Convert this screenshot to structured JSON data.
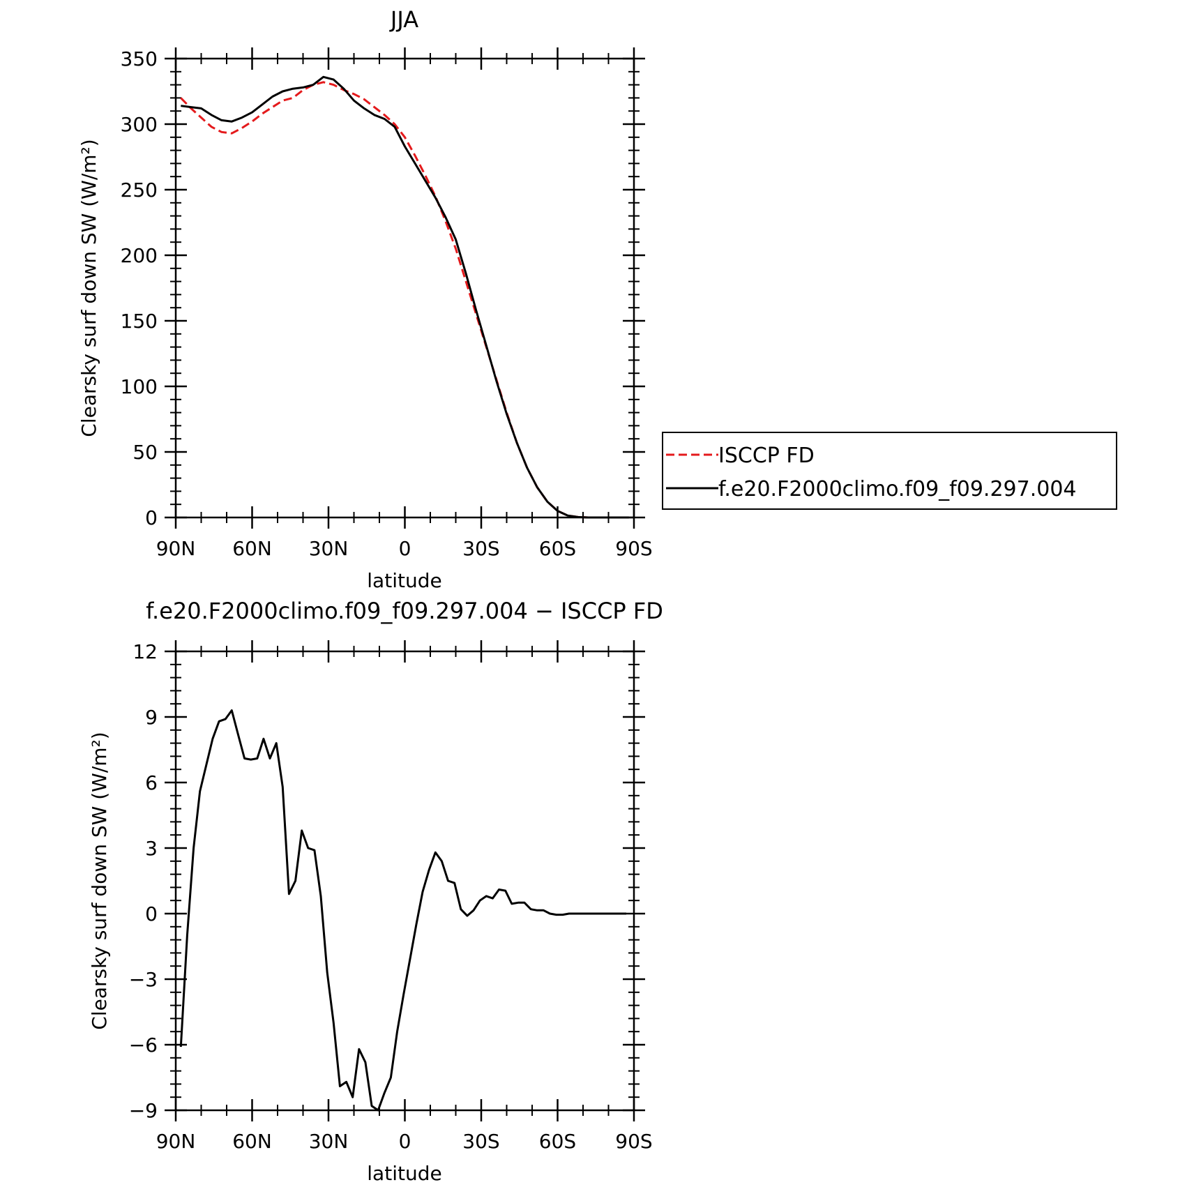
{
  "chart_data": [
    {
      "type": "line",
      "title": "JJA",
      "xlabel": "latitude",
      "ylabel": "Clearsky surf down SW (W/m²)",
      "xlim": [
        90,
        -90
      ],
      "ylim": [
        0,
        350
      ],
      "xticks": [
        90,
        60,
        30,
        0,
        -30,
        -60,
        -90
      ],
      "xtick_labels": [
        "90N",
        "60N",
        "30N",
        "0",
        "30S",
        "60S",
        "90S"
      ],
      "yticks": [
        0,
        50,
        100,
        150,
        200,
        250,
        300,
        350
      ],
      "ytick_labels": [
        "0",
        "50",
        "100",
        "150",
        "200",
        "250",
        "300",
        "350"
      ],
      "legend": "right",
      "series": [
        {
          "name": "ISCCP FD",
          "color": "#e41a1c",
          "style": "dashed",
          "x": [
            88,
            84,
            80,
            76,
            72,
            68,
            64,
            60,
            56,
            52,
            48,
            44,
            40,
            36,
            32,
            28,
            24,
            20,
            16,
            12,
            8,
            4,
            0,
            -4,
            -8,
            -12,
            -16,
            -20,
            -24,
            -28,
            -32,
            -36,
            -40,
            -44,
            -48,
            -52,
            -56,
            -60,
            -64,
            -68,
            -72,
            -76,
            -80,
            -84,
            -88
          ],
          "values": [
            320,
            312,
            305,
            298,
            294,
            293,
            297,
            302,
            308,
            313,
            318,
            320,
            326,
            330,
            332,
            330,
            326,
            323,
            319,
            313,
            307,
            300,
            290,
            276,
            261,
            245,
            226,
            205,
            180,
            155,
            130,
            105,
            80,
            57,
            38,
            23,
            12,
            5,
            1.5,
            0.3,
            0,
            0,
            0,
            0,
            0
          ]
        },
        {
          "name": "f.e20.F2000climo.f09_f09.297.004",
          "color": "#000000",
          "style": "solid",
          "x": [
            88,
            84,
            80,
            76,
            72,
            68,
            64,
            60,
            56,
            52,
            48,
            44,
            40,
            36,
            32,
            28,
            24,
            20,
            16,
            12,
            8,
            4,
            0,
            -4,
            -8,
            -12,
            -16,
            -20,
            -24,
            -28,
            -32,
            -36,
            -40,
            -44,
            -48,
            -52,
            -56,
            -60,
            -64,
            -68,
            -72,
            -76,
            -80,
            -84,
            -88
          ],
          "values": [
            314,
            313,
            312,
            307,
            303,
            302,
            305,
            309,
            315,
            321,
            325,
            327,
            328,
            330,
            336,
            334,
            327,
            318,
            312,
            307,
            304,
            298,
            283,
            270,
            257,
            244,
            229,
            212,
            186,
            158,
            131,
            104,
            79,
            57,
            38,
            23,
            12,
            5,
            1.5,
            0.3,
            0,
            0,
            0,
            0,
            0
          ]
        }
      ]
    },
    {
      "type": "line",
      "title": "f.e20.F2000climo.f09_f09.297.004 − ISCCP FD",
      "xlabel": "latitude",
      "ylabel": "Clearsky surf down SW (W/m²)",
      "xlim": [
        90,
        -90
      ],
      "ylim": [
        -9,
        12
      ],
      "xticks": [
        90,
        60,
        30,
        0,
        -30,
        -60,
        -90
      ],
      "xtick_labels": [
        "90N",
        "60N",
        "30N",
        "0",
        "30S",
        "60S",
        "90S"
      ],
      "yticks": [
        -9,
        -6,
        -3,
        0,
        3,
        6,
        9,
        12
      ],
      "ytick_labels": [
        "−9",
        "−6",
        "−3",
        "0",
        "3",
        "6",
        "9",
        "12"
      ],
      "series": [
        {
          "color": "#000000",
          "style": "solid",
          "x": [
            88,
            85.5,
            83,
            80.5,
            78,
            75.5,
            73,
            70.5,
            68,
            65.5,
            63,
            60.5,
            58,
            55.5,
            53,
            50.5,
            48,
            45.5,
            43,
            40.5,
            38,
            35.5,
            33,
            30.5,
            28,
            25.5,
            23,
            20.5,
            18,
            15.5,
            13,
            10.5,
            8,
            5.5,
            3,
            0.5,
            -2,
            -4.5,
            -7,
            -9.5,
            -12,
            -14.5,
            -17,
            -19.5,
            -22,
            -24.5,
            -27,
            -29.5,
            -32,
            -34.5,
            -37,
            -39.5,
            -42,
            -44.5,
            -47,
            -49.5,
            -52,
            -54.5,
            -57,
            -59.5,
            -62,
            -64.5,
            -67,
            -69.5,
            -72,
            -74.5,
            -77,
            -79.5,
            -82,
            -84.5,
            -87
          ],
          "values": [
            -6.1,
            -1.0,
            3.0,
            5.6,
            6.8,
            8.0,
            8.8,
            8.9,
            9.3,
            8.2,
            7.1,
            7.05,
            7.1,
            8.0,
            7.1,
            7.8,
            5.8,
            0.9,
            1.5,
            3.8,
            3.0,
            2.9,
            0.8,
            -2.7,
            -5.0,
            -7.9,
            -7.7,
            -8.4,
            -6.2,
            -6.8,
            -8.8,
            -9.0,
            -8.2,
            -7.5,
            -5.4,
            -3.7,
            -2.1,
            -0.5,
            1.0,
            2.0,
            2.8,
            2.4,
            1.5,
            1.4,
            0.2,
            -0.1,
            0.15,
            0.6,
            0.8,
            0.7,
            1.1,
            1.05,
            0.45,
            0.5,
            0.5,
            0.2,
            0.15,
            0.15,
            0.0,
            -0.05,
            -0.05,
            0.0,
            0.0,
            0.0,
            0.0,
            0.0,
            0.0,
            0.0,
            0.0,
            0.0,
            0.0
          ]
        }
      ]
    }
  ]
}
